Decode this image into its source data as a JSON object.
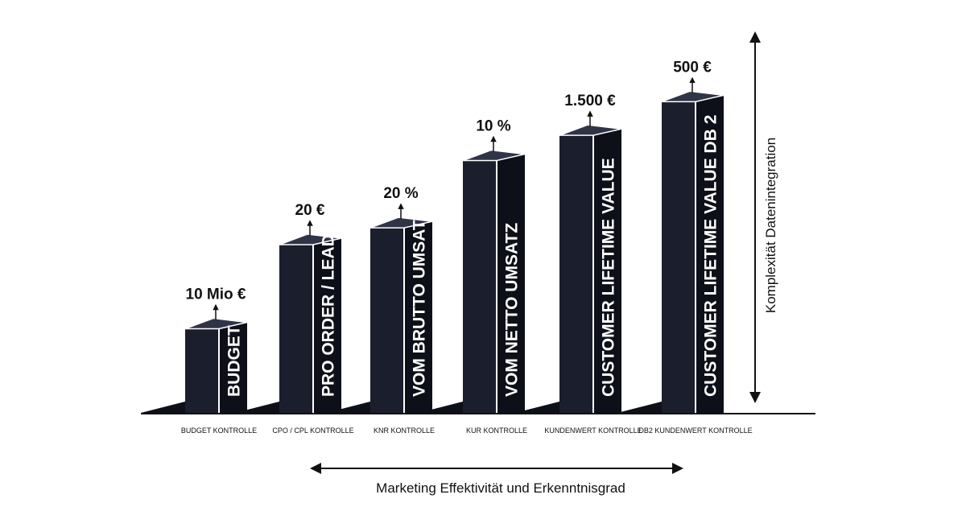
{
  "chart_data": {
    "type": "bar",
    "title": "",
    "xlabel": "Marketing Effektivität und Erkenntnisgrad",
    "ylabel": "Komplexität Datenintegration",
    "categories": [
      "BUDGET KONTROLLE",
      "CPO / CPL KONTROLLE",
      "KNR KONTROLLE",
      "KUR KONTROLLE",
      "KUNDENWERT KONTROLLE",
      "DB2 KUNDENWERT KONTROLLE"
    ],
    "bar_labels": [
      "BUDGET",
      "PRO ORDER / LEAD",
      "VOM BRUTTO UMSATZ",
      "VOM NETTO UMSATZ",
      "CUSTOMER LIFETIME VALUE",
      "CUSTOMER LIFETIME VALUE DB 2"
    ],
    "value_labels": [
      "10 Mio €",
      "20 €",
      "20 %",
      "10 %",
      "1.500 €",
      "500 €"
    ],
    "values": [
      1,
      2,
      2.2,
      3,
      3.3,
      3.7
    ],
    "ylim": [
      0,
      4
    ],
    "grid": false,
    "colors": {
      "bar": "#1b1e2c",
      "bar_side": "#0e1019",
      "bar_top": "#2f3447",
      "edge": "#ffffff",
      "ink": "#111111"
    }
  }
}
